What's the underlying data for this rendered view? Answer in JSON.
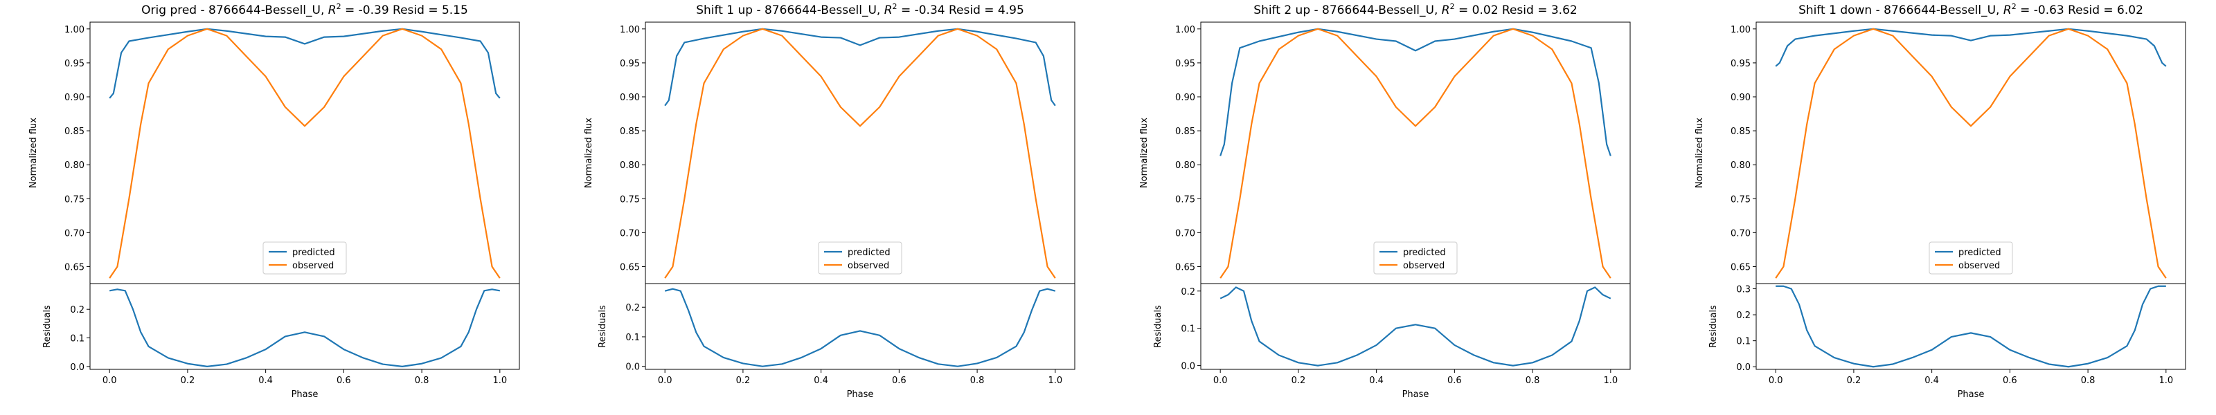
{
  "chart_data": [
    {
      "type": "line",
      "title_parts": {
        "prefix": "Orig pred - 8766644-Bessell_U, ",
        "r2_sym": "R",
        "r2_sup": "2",
        "suffix": " = -0.39 Resid = 5.15"
      },
      "series": [
        {
          "name": "predicted",
          "color": "#1f77b4",
          "x": [
            0.0,
            0.01,
            0.03,
            0.05,
            0.1,
            0.2,
            0.25,
            0.3,
            0.4,
            0.45,
            0.5,
            0.55,
            0.6,
            0.7,
            0.75,
            0.8,
            0.9,
            0.95,
            0.97,
            0.99,
            1.0
          ],
          "values": [
            0.898,
            0.905,
            0.965,
            0.982,
            0.987,
            0.996,
            1.0,
            0.997,
            0.989,
            0.988,
            0.978,
            0.988,
            0.989,
            0.997,
            1.0,
            0.996,
            0.987,
            0.982,
            0.965,
            0.905,
            0.898
          ]
        },
        {
          "name": "observed",
          "color": "#ff7f0e",
          "x": [
            0.0,
            0.02,
            0.05,
            0.08,
            0.1,
            0.15,
            0.2,
            0.25,
            0.3,
            0.35,
            0.4,
            0.45,
            0.5,
            0.55,
            0.6,
            0.65,
            0.7,
            0.75,
            0.8,
            0.85,
            0.9,
            0.92,
            0.95,
            0.98,
            1.0
          ],
          "values": [
            0.633,
            0.65,
            0.75,
            0.86,
            0.92,
            0.97,
            0.99,
            1.0,
            0.99,
            0.96,
            0.93,
            0.885,
            0.857,
            0.885,
            0.93,
            0.96,
            0.99,
            1.0,
            0.99,
            0.97,
            0.92,
            0.86,
            0.75,
            0.65,
            0.633
          ]
        }
      ],
      "ylabel": "Normalized flux",
      "ylim": [
        0.625,
        1.01
      ],
      "yticks": [
        "0.65",
        "0.70",
        "0.75",
        "0.80",
        "0.85",
        "0.90",
        "0.95",
        "1.00"
      ],
      "legend_position": "lower center",
      "residuals": {
        "ylabel": "Residuals",
        "ylim": [
          -0.01,
          0.29
        ],
        "yticks": [
          "0.0",
          "0.1",
          "0.2"
        ],
        "x": [
          0.0,
          0.02,
          0.04,
          0.06,
          0.08,
          0.1,
          0.15,
          0.2,
          0.25,
          0.3,
          0.35,
          0.4,
          0.45,
          0.5,
          0.55,
          0.6,
          0.65,
          0.7,
          0.75,
          0.8,
          0.85,
          0.9,
          0.92,
          0.94,
          0.96,
          0.98,
          1.0
        ],
        "values": [
          0.265,
          0.27,
          0.265,
          0.2,
          0.12,
          0.07,
          0.03,
          0.01,
          0.0,
          0.008,
          0.03,
          0.06,
          0.105,
          0.12,
          0.105,
          0.06,
          0.03,
          0.008,
          0.0,
          0.01,
          0.03,
          0.07,
          0.12,
          0.2,
          0.265,
          0.27,
          0.265
        ]
      },
      "xlabel": "Phase",
      "xticks": [
        "0.0",
        "0.2",
        "0.4",
        "0.6",
        "0.8",
        "1.0"
      ]
    },
    {
      "type": "line",
      "title_parts": {
        "prefix": "Shift 1 up - 8766644-Bessell_U, ",
        "r2_sym": "R",
        "r2_sup": "2",
        "suffix": " = -0.34 Resid = 4.95"
      },
      "series": [
        {
          "name": "predicted",
          "color": "#1f77b4",
          "x": [
            0.0,
            0.01,
            0.03,
            0.05,
            0.1,
            0.2,
            0.25,
            0.3,
            0.4,
            0.45,
            0.5,
            0.55,
            0.6,
            0.7,
            0.75,
            0.8,
            0.9,
            0.95,
            0.97,
            0.99,
            1.0
          ],
          "values": [
            0.887,
            0.895,
            0.96,
            0.98,
            0.986,
            0.996,
            1.0,
            0.997,
            0.988,
            0.987,
            0.976,
            0.987,
            0.988,
            0.997,
            1.0,
            0.996,
            0.986,
            0.98,
            0.96,
            0.895,
            0.887
          ]
        },
        {
          "name": "observed",
          "color": "#ff7f0e",
          "x": [
            0.0,
            0.02,
            0.05,
            0.08,
            0.1,
            0.15,
            0.2,
            0.25,
            0.3,
            0.35,
            0.4,
            0.45,
            0.5,
            0.55,
            0.6,
            0.65,
            0.7,
            0.75,
            0.8,
            0.85,
            0.9,
            0.92,
            0.95,
            0.98,
            1.0
          ],
          "values": [
            0.633,
            0.65,
            0.75,
            0.86,
            0.92,
            0.97,
            0.99,
            1.0,
            0.99,
            0.96,
            0.93,
            0.885,
            0.857,
            0.885,
            0.93,
            0.96,
            0.99,
            1.0,
            0.99,
            0.97,
            0.92,
            0.86,
            0.75,
            0.65,
            0.633
          ]
        }
      ],
      "ylabel": "Normalized flux",
      "ylim": [
        0.625,
        1.01
      ],
      "yticks": [
        "0.65",
        "0.70",
        "0.75",
        "0.80",
        "0.85",
        "0.90",
        "0.95",
        "1.00"
      ],
      "legend_position": "lower center",
      "residuals": {
        "ylabel": "Residuals",
        "ylim": [
          -0.01,
          0.28
        ],
        "yticks": [
          "0.0",
          "0.1",
          "0.2"
        ],
        "x": [
          0.0,
          0.02,
          0.04,
          0.06,
          0.08,
          0.1,
          0.15,
          0.2,
          0.25,
          0.3,
          0.35,
          0.4,
          0.45,
          0.5,
          0.55,
          0.6,
          0.65,
          0.7,
          0.75,
          0.8,
          0.85,
          0.9,
          0.92,
          0.94,
          0.96,
          0.98,
          1.0
        ],
        "values": [
          0.255,
          0.262,
          0.255,
          0.19,
          0.115,
          0.068,
          0.03,
          0.01,
          0.0,
          0.008,
          0.03,
          0.06,
          0.105,
          0.12,
          0.105,
          0.06,
          0.03,
          0.008,
          0.0,
          0.01,
          0.03,
          0.068,
          0.115,
          0.19,
          0.255,
          0.262,
          0.255
        ]
      },
      "xlabel": "Phase",
      "xticks": [
        "0.0",
        "0.2",
        "0.4",
        "0.6",
        "0.8",
        "1.0"
      ]
    },
    {
      "type": "line",
      "title_parts": {
        "prefix": "Shift 2 up - 8766644-Bessell_U, ",
        "r2_sym": "R",
        "r2_sup": "2",
        "suffix": " = 0.02 Resid = 3.62"
      },
      "series": [
        {
          "name": "predicted",
          "color": "#1f77b4",
          "x": [
            0.0,
            0.01,
            0.03,
            0.05,
            0.1,
            0.2,
            0.25,
            0.3,
            0.4,
            0.45,
            0.5,
            0.55,
            0.6,
            0.7,
            0.75,
            0.8,
            0.9,
            0.95,
            0.97,
            0.99,
            1.0
          ],
          "values": [
            0.813,
            0.83,
            0.92,
            0.972,
            0.982,
            0.995,
            1.0,
            0.996,
            0.985,
            0.982,
            0.968,
            0.982,
            0.985,
            0.996,
            1.0,
            0.995,
            0.982,
            0.972,
            0.92,
            0.83,
            0.813
          ]
        },
        {
          "name": "observed",
          "color": "#ff7f0e",
          "x": [
            0.0,
            0.02,
            0.05,
            0.08,
            0.1,
            0.15,
            0.2,
            0.25,
            0.3,
            0.35,
            0.4,
            0.45,
            0.5,
            0.55,
            0.6,
            0.65,
            0.7,
            0.75,
            0.8,
            0.85,
            0.9,
            0.92,
            0.95,
            0.98,
            1.0
          ],
          "values": [
            0.633,
            0.65,
            0.75,
            0.86,
            0.92,
            0.97,
            0.99,
            1.0,
            0.99,
            0.96,
            0.93,
            0.885,
            0.857,
            0.885,
            0.93,
            0.96,
            0.99,
            1.0,
            0.99,
            0.97,
            0.92,
            0.86,
            0.75,
            0.65,
            0.633
          ]
        }
      ],
      "ylabel": "Normalized flux",
      "ylim": [
        0.625,
        1.01
      ],
      "yticks": [
        "0.65",
        "0.70",
        "0.75",
        "0.80",
        "0.85",
        "0.90",
        "0.95",
        "1.00"
      ],
      "legend_position": "lower center",
      "residuals": {
        "ylabel": "Residuals",
        "ylim": [
          -0.01,
          0.22
        ],
        "yticks": [
          "0.0",
          "0.1",
          "0.2"
        ],
        "x": [
          0.0,
          0.02,
          0.04,
          0.06,
          0.08,
          0.1,
          0.15,
          0.2,
          0.25,
          0.3,
          0.35,
          0.4,
          0.45,
          0.5,
          0.55,
          0.6,
          0.65,
          0.7,
          0.75,
          0.8,
          0.85,
          0.9,
          0.92,
          0.94,
          0.96,
          0.98,
          1.0
        ],
        "values": [
          0.18,
          0.19,
          0.21,
          0.2,
          0.12,
          0.065,
          0.028,
          0.008,
          0.0,
          0.008,
          0.028,
          0.055,
          0.1,
          0.11,
          0.1,
          0.055,
          0.028,
          0.008,
          0.0,
          0.008,
          0.028,
          0.065,
          0.12,
          0.2,
          0.21,
          0.19,
          0.18
        ]
      },
      "xlabel": "Phase",
      "xticks": [
        "0.0",
        "0.2",
        "0.4",
        "0.6",
        "0.8",
        "1.0"
      ]
    },
    {
      "type": "line",
      "title_parts": {
        "prefix": "Shift 1 down - 8766644-Bessell_U, ",
        "r2_sym": "R",
        "r2_sup": "2",
        "suffix": " = -0.63 Resid = 6.02"
      },
      "series": [
        {
          "name": "predicted",
          "color": "#1f77b4",
          "x": [
            0.0,
            0.01,
            0.03,
            0.05,
            0.1,
            0.2,
            0.25,
            0.3,
            0.4,
            0.45,
            0.5,
            0.55,
            0.6,
            0.7,
            0.75,
            0.8,
            0.9,
            0.95,
            0.97,
            0.99,
            1.0
          ],
          "values": [
            0.945,
            0.95,
            0.975,
            0.985,
            0.99,
            0.997,
            1.0,
            0.997,
            0.991,
            0.99,
            0.983,
            0.99,
            0.991,
            0.997,
            1.0,
            0.997,
            0.99,
            0.985,
            0.975,
            0.95,
            0.945
          ]
        },
        {
          "name": "observed",
          "color": "#ff7f0e",
          "x": [
            0.0,
            0.02,
            0.05,
            0.08,
            0.1,
            0.15,
            0.2,
            0.25,
            0.3,
            0.35,
            0.4,
            0.45,
            0.5,
            0.55,
            0.6,
            0.65,
            0.7,
            0.75,
            0.8,
            0.85,
            0.9,
            0.92,
            0.95,
            0.98,
            1.0
          ],
          "values": [
            0.633,
            0.65,
            0.75,
            0.86,
            0.92,
            0.97,
            0.99,
            1.0,
            0.99,
            0.96,
            0.93,
            0.885,
            0.857,
            0.885,
            0.93,
            0.96,
            0.99,
            1.0,
            0.99,
            0.97,
            0.92,
            0.86,
            0.75,
            0.65,
            0.633
          ]
        }
      ],
      "ylabel": "Normalized flux",
      "ylim": [
        0.625,
        1.01
      ],
      "yticks": [
        "0.65",
        "0.70",
        "0.75",
        "0.80",
        "0.85",
        "0.90",
        "0.95",
        "1.00"
      ],
      "legend_position": "lower center",
      "residuals": {
        "ylabel": "Residuals",
        "ylim": [
          -0.01,
          0.32
        ],
        "yticks": [
          "0.0",
          "0.1",
          "0.2",
          "0.3"
        ],
        "x": [
          0.0,
          0.02,
          0.04,
          0.06,
          0.08,
          0.1,
          0.15,
          0.2,
          0.25,
          0.3,
          0.35,
          0.4,
          0.45,
          0.5,
          0.55,
          0.6,
          0.65,
          0.7,
          0.75,
          0.8,
          0.85,
          0.9,
          0.92,
          0.94,
          0.96,
          0.98,
          1.0
        ],
        "values": [
          0.31,
          0.31,
          0.3,
          0.24,
          0.14,
          0.08,
          0.035,
          0.012,
          0.0,
          0.01,
          0.035,
          0.065,
          0.115,
          0.13,
          0.115,
          0.065,
          0.035,
          0.01,
          0.0,
          0.012,
          0.035,
          0.08,
          0.14,
          0.24,
          0.3,
          0.31,
          0.31
        ]
      },
      "xlabel": "Phase",
      "xticks": [
        "0.0",
        "0.2",
        "0.4",
        "0.6",
        "0.8",
        "1.0"
      ]
    }
  ]
}
